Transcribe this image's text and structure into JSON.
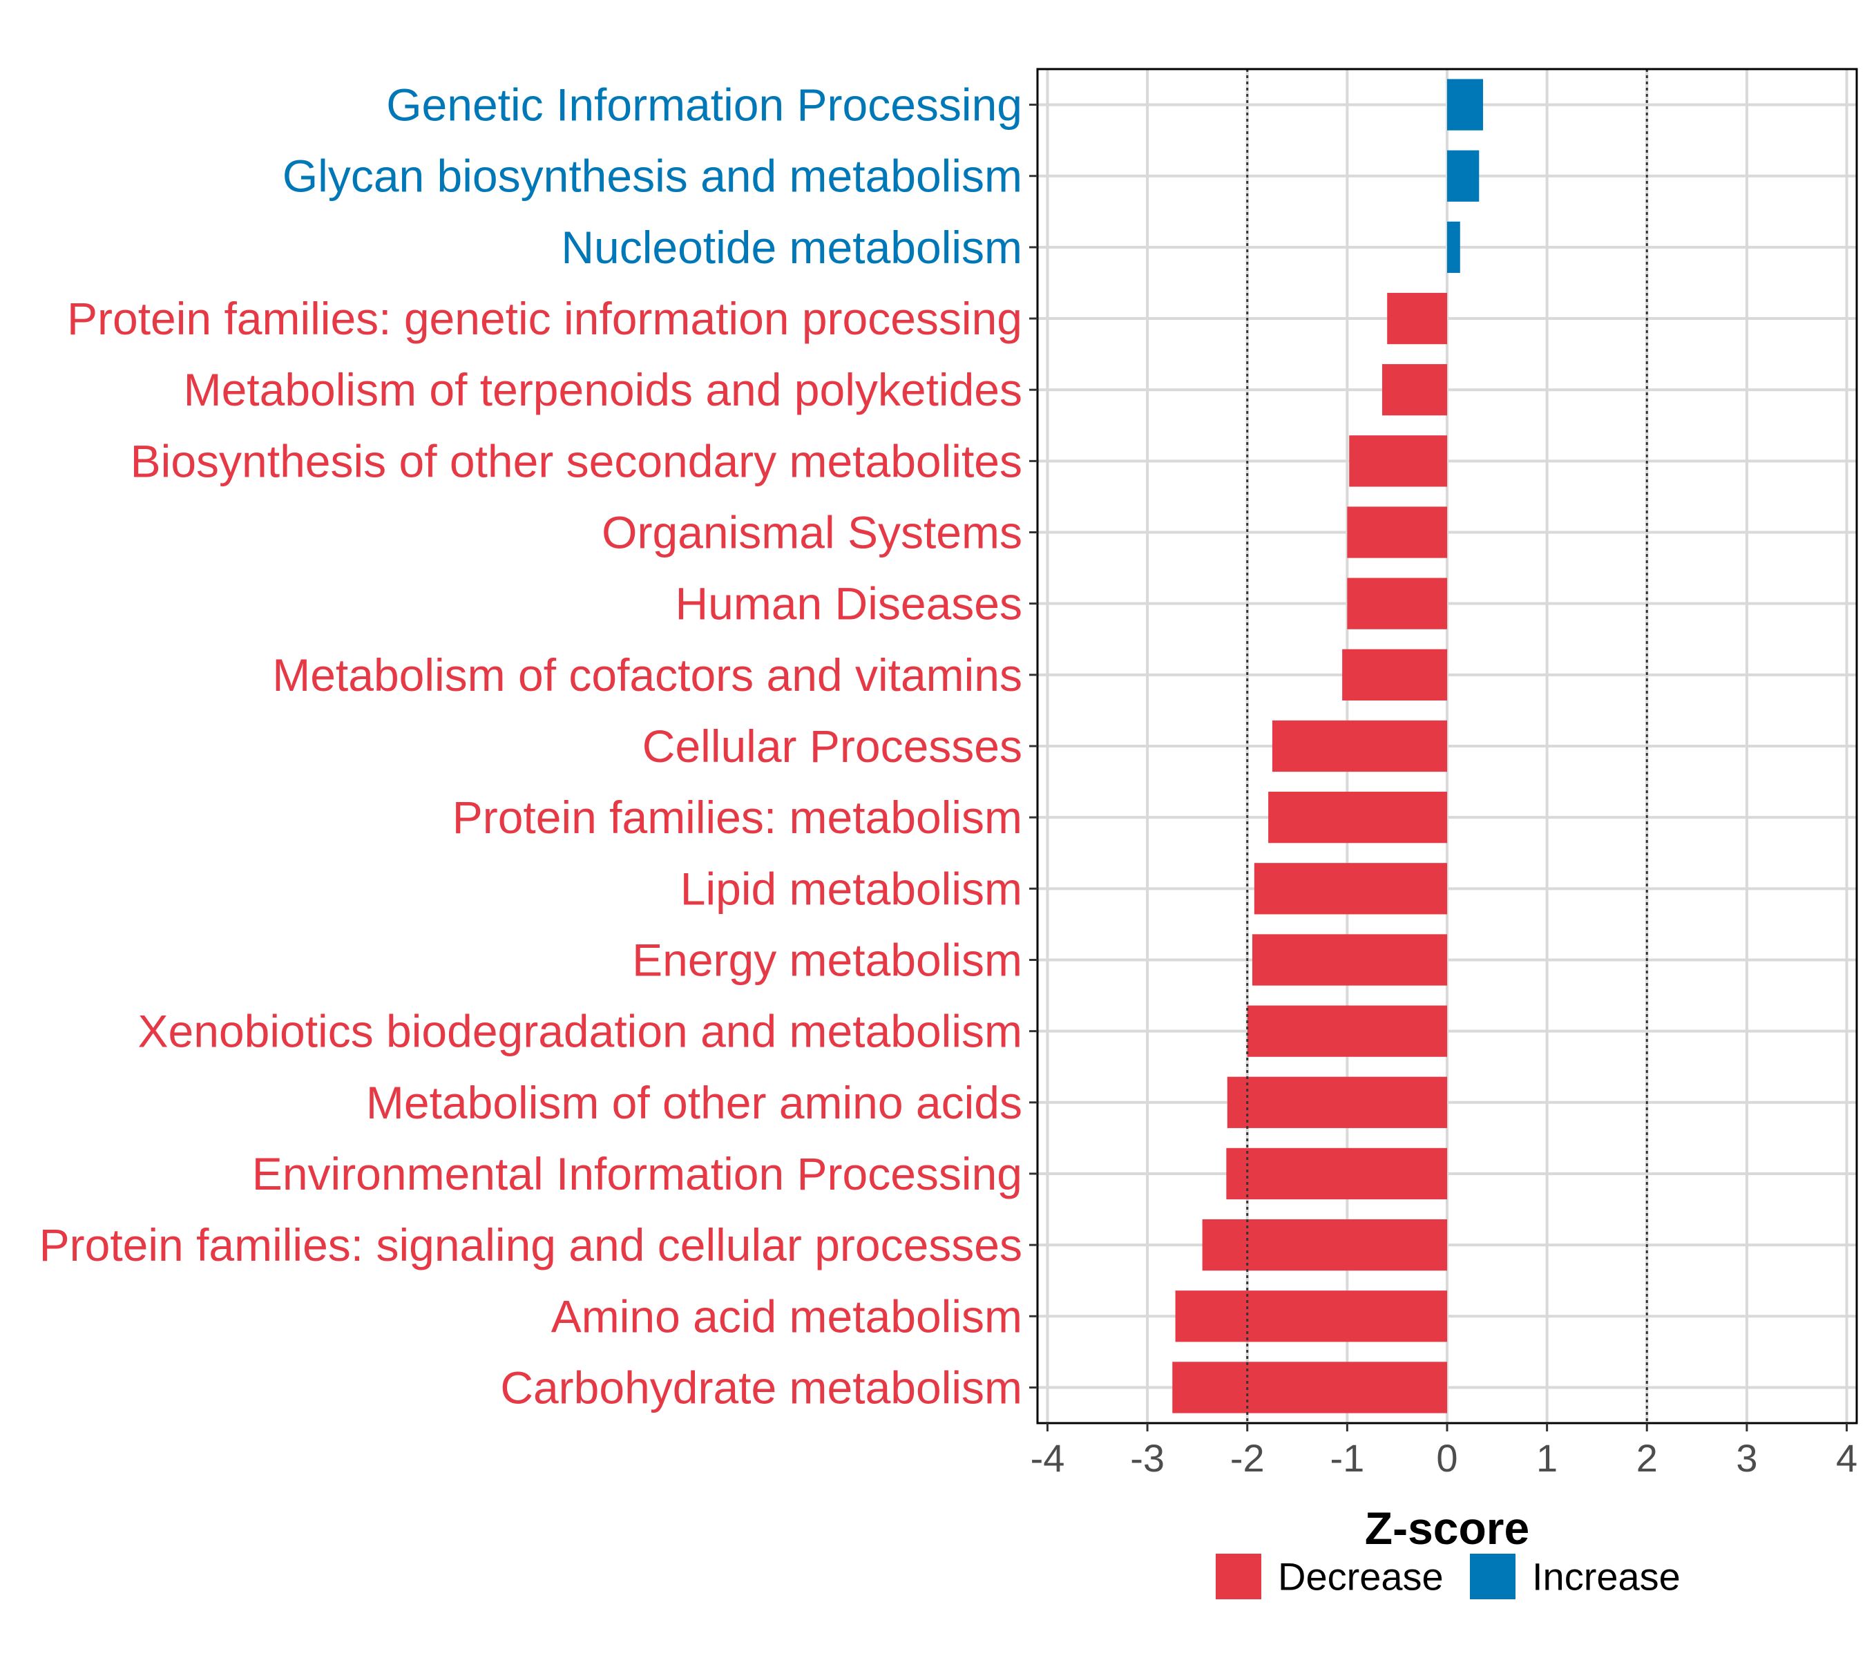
{
  "chart_data": {
    "type": "bar",
    "orientation": "horizontal",
    "title": "",
    "xlabel": "Z-score",
    "ylabel": "",
    "xlim": [
      -4.1,
      4.1
    ],
    "xticks": [
      -4,
      -3,
      -2,
      -1,
      0,
      1,
      2,
      3,
      4
    ],
    "xtick_labels": [
      "-4",
      "-3",
      "-2",
      "-1",
      "0",
      "1",
      "2",
      "3",
      "4"
    ],
    "reference_lines": [
      -2,
      2
    ],
    "grid": true,
    "legend_position": "bottom",
    "colors": {
      "Decrease": "#e63946",
      "Increase": "#0077b6"
    },
    "legend": [
      {
        "label": "Decrease",
        "color": "#e63946"
      },
      {
        "label": "Increase",
        "color": "#0077b6"
      }
    ],
    "bars": [
      {
        "category": "Genetic Information Processing",
        "value": 0.36,
        "direction": "Increase"
      },
      {
        "category": "Glycan biosynthesis and metabolism",
        "value": 0.32,
        "direction": "Increase"
      },
      {
        "category": "Nucleotide metabolism",
        "value": 0.13,
        "direction": "Increase"
      },
      {
        "category": "Protein families: genetic information processing",
        "value": -0.6,
        "direction": "Decrease"
      },
      {
        "category": "Metabolism of terpenoids and polyketides",
        "value": -0.65,
        "direction": "Decrease"
      },
      {
        "category": "Biosynthesis of other secondary metabolites",
        "value": -0.98,
        "direction": "Decrease"
      },
      {
        "category": "Organismal Systems",
        "value": -1.0,
        "direction": "Decrease"
      },
      {
        "category": "Human Diseases",
        "value": -1.0,
        "direction": "Decrease"
      },
      {
        "category": "Metabolism of cofactors and vitamins",
        "value": -1.05,
        "direction": "Decrease"
      },
      {
        "category": "Cellular Processes",
        "value": -1.75,
        "direction": "Decrease"
      },
      {
        "category": "Protein families: metabolism",
        "value": -1.79,
        "direction": "Decrease"
      },
      {
        "category": "Lipid metabolism",
        "value": -1.93,
        "direction": "Decrease"
      },
      {
        "category": "Energy metabolism",
        "value": -1.95,
        "direction": "Decrease"
      },
      {
        "category": "Xenobiotics biodegradation and metabolism",
        "value": -2.0,
        "direction": "Decrease"
      },
      {
        "category": "Metabolism of other amino acids",
        "value": -2.2,
        "direction": "Decrease"
      },
      {
        "category": "Environmental Information Processing",
        "value": -2.21,
        "direction": "Decrease"
      },
      {
        "category": "Protein families: signaling and cellular processes",
        "value": -2.45,
        "direction": "Decrease"
      },
      {
        "category": "Amino acid metabolism",
        "value": -2.72,
        "direction": "Decrease"
      },
      {
        "category": "Carbohydrate metabolism",
        "value": -2.75,
        "direction": "Decrease"
      }
    ]
  }
}
